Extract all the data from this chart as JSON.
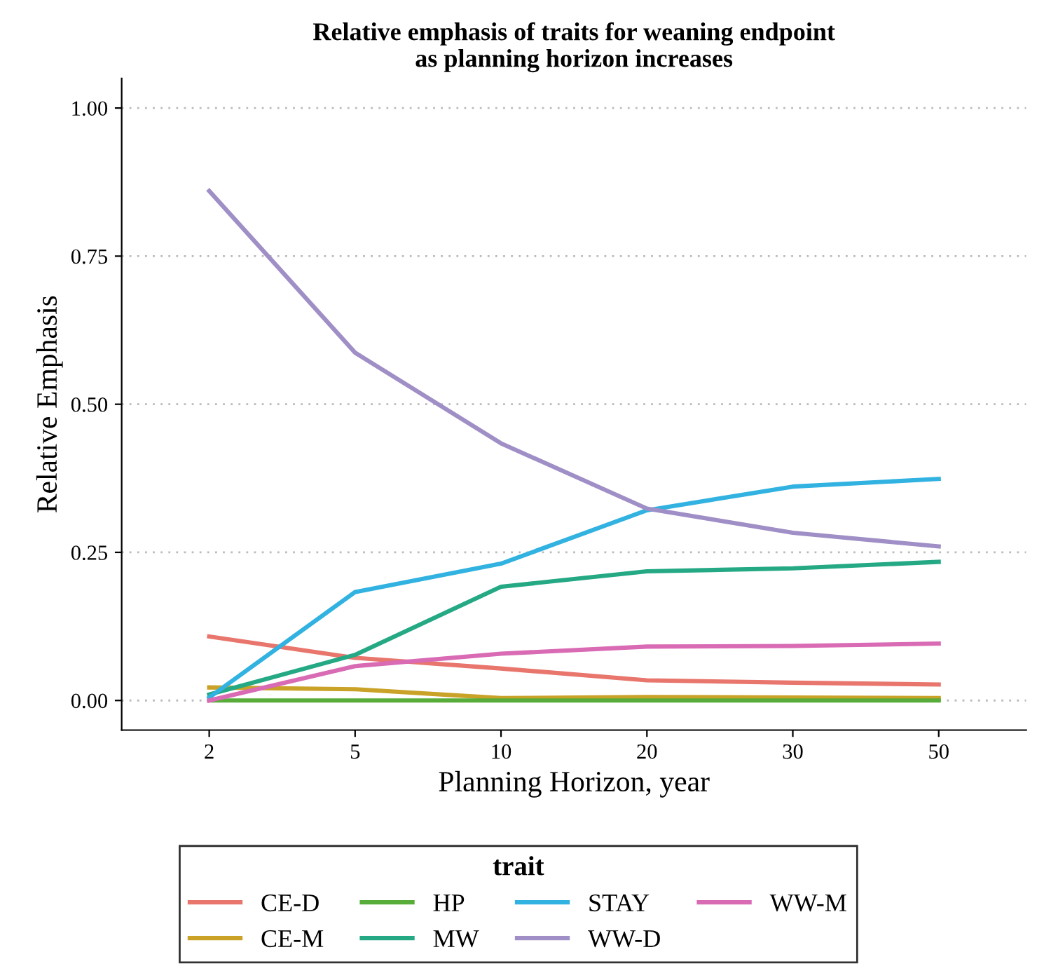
{
  "chart_data": {
    "type": "line",
    "title": "Relative emphasis of traits for weaning endpoint\nas planning horizon increases",
    "xlabel": "Planning Horizon, year",
    "ylabel": "Relative Emphasis",
    "legend_title": "trait",
    "categories": [
      "2",
      "5",
      "10",
      "20",
      "30",
      "50"
    ],
    "series": [
      {
        "name": "CE-D",
        "color": "#e8766d",
        "values": [
          0.108,
          0.072,
          0.054,
          0.034,
          0.03,
          0.027
        ]
      },
      {
        "name": "CE-M",
        "color": "#c9a227",
        "values": [
          0.022,
          0.019,
          0.004,
          0.006,
          0.005,
          0.004
        ]
      },
      {
        "name": "HP",
        "color": "#58ad3a",
        "values": [
          0,
          0,
          0,
          0,
          0,
          0
        ]
      },
      {
        "name": "MW",
        "color": "#25a985",
        "values": [
          0.01,
          0.077,
          0.192,
          0.218,
          0.223,
          0.234
        ]
      },
      {
        "name": "STAY",
        "color": "#31b2e0",
        "values": [
          0.005,
          0.183,
          0.231,
          0.321,
          0.361,
          0.374
        ]
      },
      {
        "name": "WW-D",
        "color": "#9f8fc6",
        "values": [
          0.86,
          0.587,
          0.434,
          0.324,
          0.283,
          0.26
        ]
      },
      {
        "name": "WW-M",
        "color": "#d96ab4",
        "values": [
          0,
          0.058,
          0.079,
          0.091,
          0.092,
          0.096
        ]
      }
    ],
    "ylim": [
      -0.05,
      1.05
    ],
    "yticks": [
      {
        "value": 0,
        "label": "0.00"
      },
      {
        "value": 0.25,
        "label": "0.25"
      },
      {
        "value": 0.5,
        "label": "0.50"
      },
      {
        "value": 0.75,
        "label": "0.75"
      },
      {
        "value": 1,
        "label": "1.00"
      }
    ],
    "grid": "y",
    "legend": "bottom",
    "marker": "none",
    "line_style": "solid"
  }
}
